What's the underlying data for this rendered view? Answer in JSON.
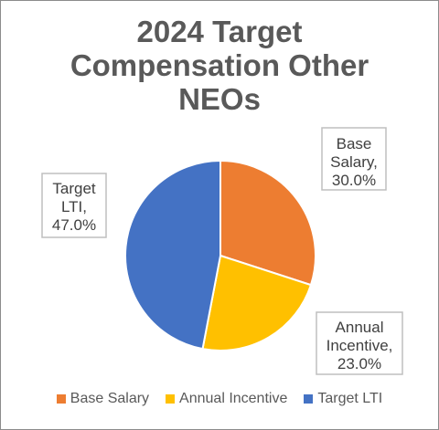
{
  "chart_data": {
    "type": "pie",
    "title_lines": [
      "2024 Target",
      "Compensation Other",
      "NEOs"
    ],
    "slices": [
      {
        "name": "Base Salary",
        "value": 30.0,
        "color": "#ED7D31",
        "label_lines": [
          "Base",
          "Salary,",
          "30.0%"
        ]
      },
      {
        "name": "Annual Incentive",
        "value": 23.0,
        "color": "#FFC000",
        "label_lines": [
          "Annual",
          "Incentive,",
          "23.0%"
        ]
      },
      {
        "name": "Target LTI",
        "value": 47.0,
        "color": "#4472C4",
        "label_lines": [
          "Target",
          "LTI,",
          "47.0%"
        ]
      }
    ],
    "legend_position": "bottom"
  }
}
